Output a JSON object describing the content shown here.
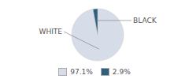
{
  "chart_data": {
    "type": "pie",
    "categories": [
      "WHITE",
      "BLACK"
    ],
    "values": [
      97.1,
      2.9
    ],
    "value_labels": [
      "97.1%",
      "2.9%"
    ],
    "colors": [
      "#d6dde8",
      "#2e5f7e"
    ],
    "legend": "bottom"
  }
}
